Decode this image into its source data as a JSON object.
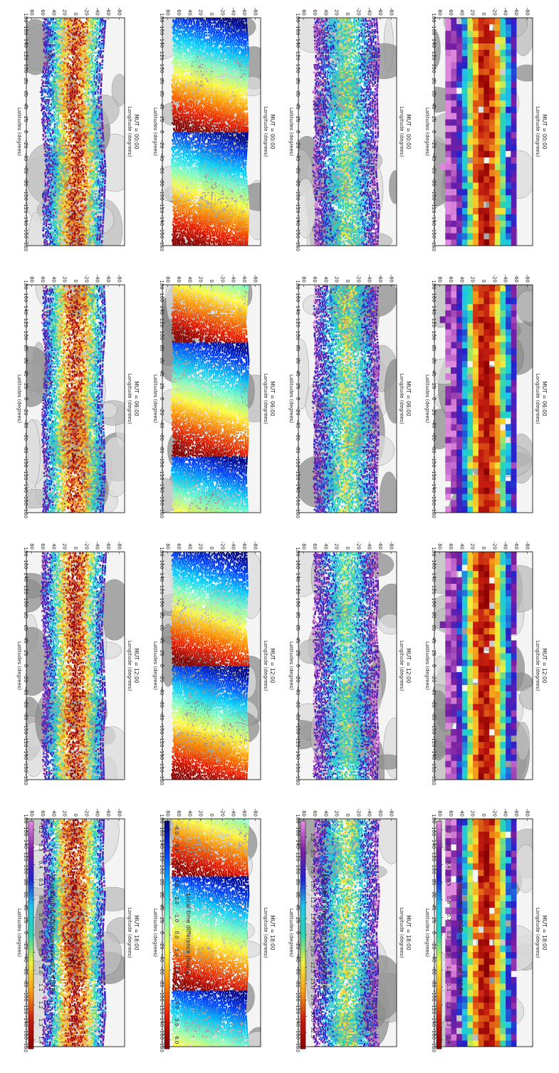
{
  "figure": {
    "axis_labels": {
      "longitude": "Longitude (degrees)",
      "latitude": "Latitudes (degrees)"
    },
    "lon_ticks": [
      -180,
      -160,
      -140,
      -120,
      -100,
      -80,
      -60,
      -40,
      -20,
      0,
      20,
      40,
      60,
      80,
      100,
      120,
      140,
      160,
      180
    ],
    "lat_ticks": [
      -80,
      -60,
      -40,
      -20,
      0,
      20,
      40,
      60,
      80
    ],
    "palettes": {
      "spectral": [
        "#dd88dd",
        "#7a1fa0",
        "#2222cc",
        "#1ec8e8",
        "#2ad4b0",
        "#f0f03c",
        "#f4a018",
        "#c81e10",
        "#8b0000"
      ],
      "jet": [
        "#00007f",
        "#0044ff",
        "#00c8ff",
        "#7fffbf",
        "#ffff40",
        "#ff8c00",
        "#e81e00",
        "#7f0000"
      ],
      "map_gray": [
        "#f4f4f4",
        "#dddddd",
        "#bdbdbd",
        "#8e8e8e"
      ]
    }
  },
  "chart_data": [
    {
      "type": "scatter",
      "column": 1,
      "colorbar": {
        "label": "IR absorption CDOD normalised at 610 Pa",
        "ticks": [
          "0.2",
          "0.3",
          "0.4",
          "0.5",
          "0.6",
          "0.7",
          "0.8",
          "0.9",
          "1.0",
          "1.1",
          "1.2",
          "1.3",
          "1.4"
        ],
        "range": [
          0.15,
          1.45
        ],
        "palette": "spectral"
      },
      "xlim": [
        -180,
        180
      ],
      "ylim": [
        -90,
        90
      ],
      "panels": [
        {
          "title": "MUT = 00:00",
          "lat_min": [
            -48,
            -52,
            -55,
            -50,
            -46,
            -50,
            -55
          ],
          "lat_max": [
            58,
            62,
            55,
            60,
            64,
            58,
            60
          ],
          "value_profile": [
            0.35,
            0.6,
            1.0,
            1.3,
            1.2,
            0.8,
            0.4
          ]
        },
        {
          "title": "MUT = 06:00",
          "lat_min": [
            -50,
            -54,
            -52,
            -48,
            -50,
            -55,
            -52
          ],
          "lat_max": [
            60,
            58,
            62,
            60,
            56,
            62,
            58
          ],
          "value_profile": [
            0.35,
            0.65,
            1.05,
            1.3,
            1.15,
            0.8,
            0.45
          ]
        },
        {
          "title": "MUT = 12:00",
          "lat_min": [
            -52,
            -50,
            -55,
            -52,
            -48,
            -52,
            -56
          ],
          "lat_max": [
            58,
            62,
            60,
            57,
            60,
            64,
            60
          ],
          "value_profile": [
            0.3,
            0.6,
            1.0,
            1.35,
            1.2,
            0.75,
            0.4
          ]
        },
        {
          "title": "MUT = 18:00",
          "lat_min": [
            -50,
            -55,
            -52,
            -50,
            -54,
            -50,
            -52
          ],
          "lat_max": [
            62,
            58,
            60,
            62,
            58,
            60,
            63
          ],
          "value_profile": [
            0.3,
            0.6,
            1.1,
            1.35,
            1.2,
            0.8,
            0.4
          ]
        }
      ]
    },
    {
      "type": "scatter",
      "column": 2,
      "colorbar": {
        "label": "Local time difference (hours)",
        "ticks": [
          "-6.0",
          "-5.0",
          "-4.0",
          "-3.0",
          "-2.0",
          "-1.0",
          "0.0",
          "1.0",
          "2.0",
          "3.0",
          "4.0",
          "5.0",
          "6.0"
        ],
        "range": [
          -6.5,
          6.5
        ],
        "palette": "jet"
      },
      "xlim": [
        -180,
        180
      ],
      "ylim": [
        -90,
        90
      ],
      "panels": [
        {
          "title": "MUT = 00:00",
          "lat_min": [
            -65,
            -68,
            -62,
            -66,
            -64,
            -68,
            -63
          ],
          "lat_max": [
            72,
            70,
            74,
            71,
            73,
            70,
            72
          ],
          "bands_lon_center": [
            -90,
            90
          ]
        },
        {
          "title": "MUT = 06:00",
          "lat_min": [
            -66,
            -63,
            -67,
            -64,
            -68,
            -62,
            -66
          ],
          "lat_max": [
            70,
            73,
            71,
            74,
            70,
            72,
            71
          ],
          "bands_lon_center": [
            -180,
            0,
            180
          ]
        },
        {
          "title": "MUT = 12:00",
          "lat_min": [
            -64,
            -67,
            -63,
            -68,
            -62,
            -66,
            -64
          ],
          "lat_max": [
            73,
            70,
            72,
            71,
            74,
            70,
            73
          ],
          "bands_lon_center": [
            -90,
            90
          ]
        },
        {
          "title": "MUT = 18:00",
          "lat_min": [
            -67,
            -62,
            -66,
            -63,
            -68,
            -64,
            -67
          ],
          "lat_max": [
            71,
            74,
            70,
            72,
            71,
            73,
            70
          ],
          "bands_lon_center": [
            -180,
            0,
            180
          ]
        }
      ]
    },
    {
      "type": "scatter",
      "column": 3,
      "colorbar": {
        "label": "Altitude of lowest point in dust profile (km)",
        "ticks": [
          "2.5",
          "5.0",
          "7.5",
          "10.0",
          "12.5",
          "15.0",
          "17.5",
          "20.0",
          "22.5",
          "25.0",
          "27.5",
          "30.0",
          "32.5"
        ],
        "range": [
          0,
          35
        ],
        "palette": "spectral"
      },
      "xlim": [
        -180,
        180
      ],
      "ylim": [
        -90,
        90
      ],
      "panels": [
        {
          "title": "MUT = 00:00",
          "lat_min": [
            -55,
            -58,
            -52,
            -56,
            -54,
            -58,
            -53
          ],
          "lat_max": [
            62,
            60,
            64,
            61,
            63,
            60,
            62
          ],
          "value_profile": [
            3,
            8,
            14,
            19,
            16,
            9,
            4
          ]
        },
        {
          "title": "MUT = 06:00",
          "lat_min": [
            -56,
            -53,
            -57,
            -54,
            -58,
            -52,
            -56
          ],
          "lat_max": [
            60,
            63,
            61,
            64,
            60,
            62,
            61
          ],
          "value_profile": [
            4,
            9,
            15,
            20,
            17,
            10,
            4
          ]
        },
        {
          "title": "MUT = 12:00",
          "lat_min": [
            -54,
            -57,
            -53,
            -58,
            -52,
            -56,
            -54
          ],
          "lat_max": [
            63,
            60,
            62,
            61,
            64,
            60,
            63
          ],
          "value_profile": [
            3,
            8,
            13,
            18,
            15,
            8,
            3
          ]
        },
        {
          "title": "MUT = 18:00",
          "lat_min": [
            -57,
            -52,
            -56,
            -53,
            -58,
            -54,
            -57
          ],
          "lat_max": [
            61,
            64,
            60,
            62,
            61,
            63,
            60
          ],
          "value_profile": [
            3,
            9,
            15,
            21,
            17,
            9,
            4
          ]
        }
      ]
    },
    {
      "type": "heatmap",
      "column": 4,
      "colorbar": {
        "label": "IR absorption CDOD normalised at 610 Pa",
        "ticks": [
          "0.2",
          "0.3",
          "0.4",
          "0.5",
          "0.6",
          "0.7",
          "0.8",
          "0.9",
          "1.0",
          "1.1",
          "1.2",
          "1.3",
          "1.4"
        ],
        "range": [
          0.15,
          1.45
        ],
        "palette": "spectral"
      },
      "xlim": [
        -180,
        180
      ],
      "ylim": [
        -90,
        90
      ],
      "panels": [
        {
          "title": "MUT = 00:00",
          "lat_min": [
            -62,
            -66,
            -60,
            -64,
            -62,
            -66,
            -61
          ],
          "lat_max": [
            72,
            68,
            74,
            70,
            72,
            68,
            73
          ],
          "value_profile": [
            0.2,
            0.45,
            0.9,
            1.3,
            1.35,
            1.0,
            0.55,
            0.25
          ]
        },
        {
          "title": "MUT = 06:00",
          "lat_min": [
            -64,
            -60,
            -66,
            -62,
            -65,
            -60,
            -64
          ],
          "lat_max": [
            70,
            73,
            69,
            72,
            70,
            74,
            70
          ],
          "value_profile": [
            0.2,
            0.4,
            0.85,
            1.3,
            1.35,
            1.05,
            0.6,
            0.25
          ]
        },
        {
          "title": "MUT = 12:00",
          "lat_min": [
            -60,
            -64,
            -62,
            -66,
            -60,
            -64,
            -62
          ],
          "lat_max": [
            73,
            69,
            72,
            70,
            74,
            70,
            72
          ],
          "value_profile": [
            0.2,
            0.45,
            0.95,
            1.35,
            1.3,
            1.0,
            0.5,
            0.25
          ]
        },
        {
          "title": "MUT = 18:00",
          "lat_min": [
            -65,
            -61,
            -64,
            -60,
            -66,
            -62,
            -65
          ],
          "lat_max": [
            70,
            72,
            70,
            74,
            69,
            72,
            70
          ],
          "value_profile": [
            0.2,
            0.45,
            0.9,
            1.3,
            1.35,
            1.05,
            0.55,
            0.25
          ]
        }
      ]
    }
  ]
}
